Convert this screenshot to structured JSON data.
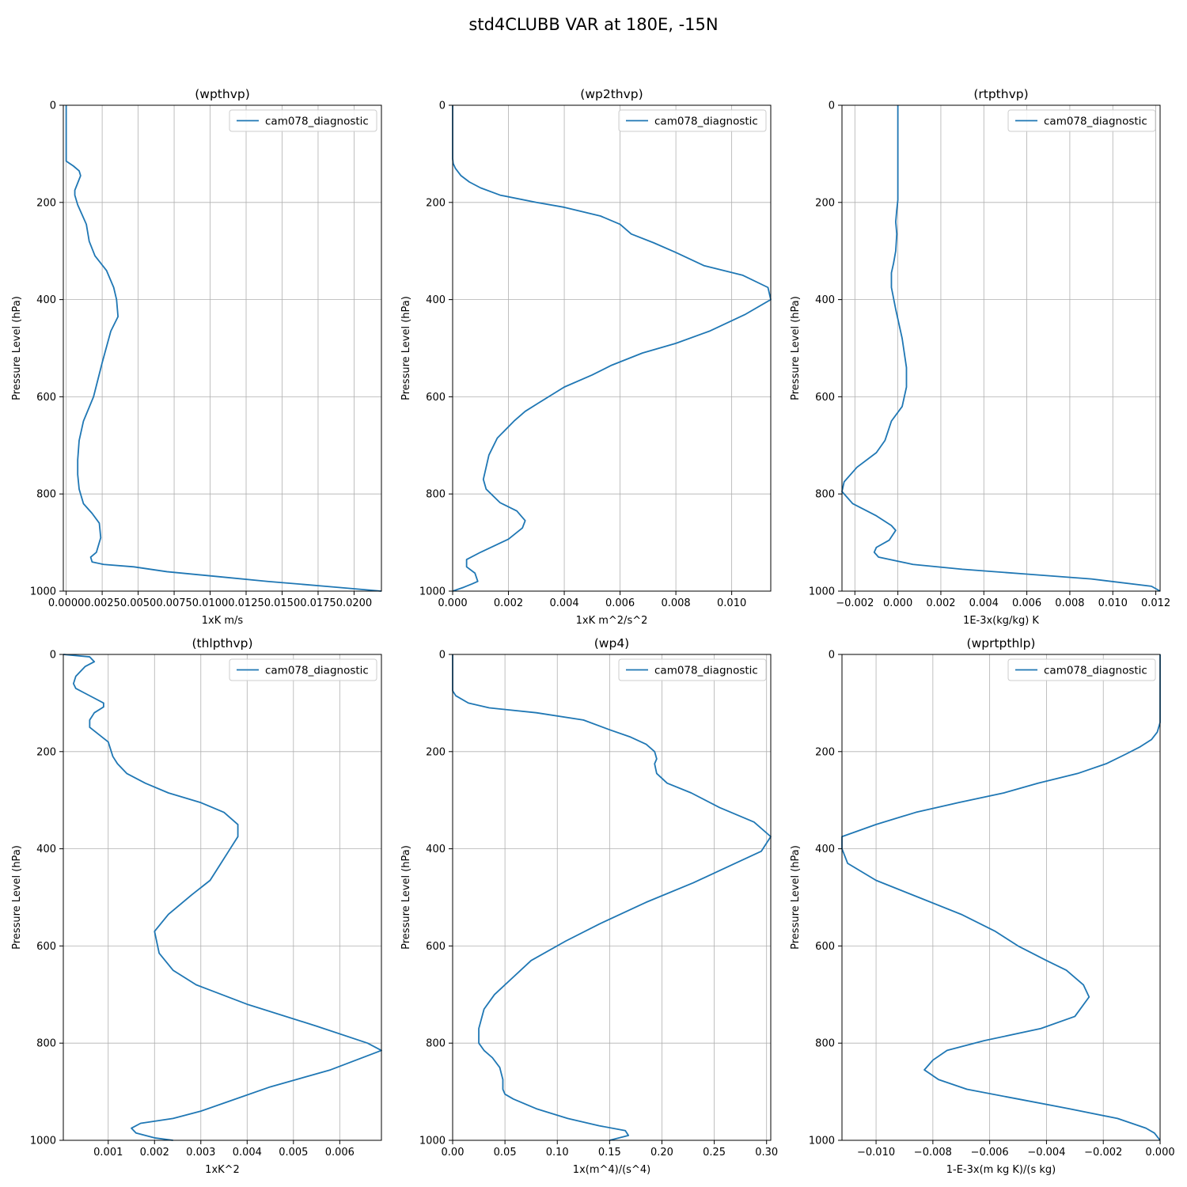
{
  "figure": {
    "title": "std4CLUBB VAR at 180E, -15N"
  },
  "chart_data": [
    {
      "type": "line",
      "title": "(wpthvp)",
      "xlabel": "1xK m/s",
      "ylabel": "Pressure Level (hPa)",
      "xlim": [
        -0.0002,
        0.0219
      ],
      "ylim": [
        1000,
        0
      ],
      "xticks": [
        0,
        0.0025,
        0.005,
        0.0075,
        0.01,
        0.0125,
        0.015,
        0.0175,
        0.02
      ],
      "xtick_labels": [
        "0.0000",
        "0.0025",
        "0.0050",
        "0.0075",
        "0.0100",
        "0.0125",
        "0.0150",
        "0.0175",
        "0.0200"
      ],
      "yticks": [
        0,
        200,
        400,
        600,
        800,
        1000
      ],
      "ytick_labels": [
        "0",
        "200",
        "400",
        "600",
        "800",
        "1000"
      ],
      "grid": true,
      "legend": "upper right",
      "series": [
        {
          "name": "cam078_diagnostic",
          "color": "#1f77b4",
          "x": [
            0.0,
            0.0,
            0.0,
            0.0,
            0.0,
            0.0,
            0.0,
            0.0,
            0.0,
            0.0,
            0.0005,
            0.0009,
            0.001,
            0.0008,
            0.0006,
            0.0006,
            0.0008,
            0.0011,
            0.0014,
            0.0016,
            0.002,
            0.0028,
            0.0033,
            0.0035,
            0.0036,
            0.0031,
            0.0025,
            0.0019,
            0.0012,
            0.0009,
            0.0008,
            0.0008,
            0.0009,
            0.0012,
            0.0018,
            0.0023,
            0.0024,
            0.0021,
            0.0017,
            0.0018,
            0.0026,
            0.0047,
            0.007,
            0.0105,
            0.014,
            0.018,
            0.0219
          ],
          "y": [
            0,
            15,
            30,
            45,
            60,
            75,
            90,
            100,
            108,
            115,
            125,
            135,
            145,
            160,
            175,
            185,
            205,
            225,
            245,
            280,
            310,
            340,
            375,
            400,
            435,
            465,
            530,
            600,
            650,
            690,
            730,
            760,
            790,
            820,
            840,
            860,
            890,
            920,
            930,
            940,
            945,
            950,
            960,
            970,
            980,
            990,
            1000
          ]
        }
      ]
    },
    {
      "type": "line",
      "title": "(wp2thvp)",
      "xlabel": "1xK m^2/s^2",
      "ylabel": "Pressure Level (hPa)",
      "xlim": [
        0,
        0.0114
      ],
      "ylim": [
        1000,
        0
      ],
      "xticks": [
        0,
        0.002,
        0.004,
        0.006,
        0.008,
        0.01
      ],
      "xtick_labels": [
        "0.000",
        "0.002",
        "0.004",
        "0.006",
        "0.008",
        "0.010"
      ],
      "yticks": [
        0,
        200,
        400,
        600,
        800,
        1000
      ],
      "ytick_labels": [
        "0",
        "200",
        "400",
        "600",
        "800",
        "1000"
      ],
      "grid": true,
      "legend": "upper right",
      "series": [
        {
          "name": "cam078_diagnostic",
          "color": "#1f77b4",
          "x": [
            0.0,
            0.0,
            0.0,
            0.0,
            2e-05,
            0.0001,
            0.0003,
            0.0006,
            0.001,
            0.0017,
            0.003,
            0.004,
            0.0053,
            0.006,
            0.0064,
            0.0072,
            0.008,
            0.009,
            0.0104,
            0.0113,
            0.0114,
            0.0105,
            0.0092,
            0.008,
            0.0068,
            0.0057,
            0.005,
            0.004,
            0.0031,
            0.0026,
            0.0022,
            0.0016,
            0.0013,
            0.0011,
            0.0012,
            0.0017,
            0.0023,
            0.0026,
            0.0025,
            0.002,
            0.001,
            0.0005,
            0.0005,
            0.0008,
            0.0009,
            0.0007,
            0.0004,
            0.0
          ],
          "y": [
            0,
            50,
            90,
            110,
            120,
            130,
            145,
            158,
            170,
            185,
            200,
            210,
            228,
            245,
            265,
            283,
            303,
            330,
            350,
            375,
            400,
            430,
            465,
            490,
            510,
            535,
            555,
            580,
            612,
            630,
            650,
            685,
            720,
            770,
            790,
            818,
            835,
            855,
            870,
            893,
            920,
            935,
            950,
            963,
            980,
            985,
            992,
            1000
          ]
        }
      ]
    },
    {
      "type": "line",
      "title": "(rtpthvp)",
      "xlabel": "1E-3x(kg/kg) K",
      "ylabel": "Pressure Level (hPa)",
      "xlim": [
        -0.0026,
        0.0122
      ],
      "ylim": [
        1000,
        0
      ],
      "xticks": [
        -0.002,
        0,
        0.002,
        0.004,
        0.006,
        0.008,
        0.01,
        0.012
      ],
      "xtick_labels": [
        "−0.002",
        "0.000",
        "0.002",
        "0.004",
        "0.006",
        "0.008",
        "0.010",
        "0.012"
      ],
      "yticks": [
        0,
        200,
        400,
        600,
        800,
        1000
      ],
      "ytick_labels": [
        "0",
        "200",
        "400",
        "600",
        "800",
        "1000"
      ],
      "grid": true,
      "legend": "upper right",
      "series": [
        {
          "name": "cam078_diagnostic",
          "color": "#1f77b4",
          "x": [
            0.0,
            0.0,
            0.0,
            -5e-05,
            -0.0001,
            -5e-05,
            -0.0001,
            -0.0002,
            -0.0003,
            -0.0003,
            -0.0001,
            0.0002,
            0.0004,
            0.0004,
            0.0004,
            0.0002,
            -0.0003,
            -0.0006,
            -0.001,
            -0.0019,
            -0.0025,
            -0.0026,
            -0.0021,
            -0.001,
            -0.0003,
            -0.0001,
            -0.0004,
            -0.001,
            -0.0011,
            -0.0009,
            0.0007,
            0.003,
            0.006,
            0.009,
            0.0118,
            0.0122
          ],
          "y": [
            0,
            100,
            195,
            215,
            240,
            265,
            300,
            325,
            345,
            375,
            420,
            480,
            540,
            575,
            580,
            620,
            650,
            690,
            715,
            745,
            775,
            795,
            820,
            845,
            865,
            875,
            895,
            910,
            920,
            930,
            945,
            955,
            965,
            975,
            990,
            1000
          ]
        }
      ]
    },
    {
      "type": "line",
      "title": "(thlpthvp)",
      "xlabel": "1xK^2",
      "ylabel": "Pressure Level (hPa)",
      "xlim": [
        3e-05,
        0.0069
      ],
      "ylim": [
        1000,
        0
      ],
      "xticks": [
        0.001,
        0.002,
        0.003,
        0.004,
        0.005,
        0.006
      ],
      "xtick_labels": [
        "0.001",
        "0.002",
        "0.003",
        "0.004",
        "0.005",
        "0.006"
      ],
      "yticks": [
        0,
        200,
        400,
        600,
        800,
        1000
      ],
      "ytick_labels": [
        "0",
        "200",
        "400",
        "600",
        "800",
        "1000"
      ],
      "grid": true,
      "legend": "upper right",
      "series": [
        {
          "name": "cam078_diagnostic",
          "color": "#1f77b4",
          "x": [
            3e-05,
            0.0006,
            0.0007,
            0.0005,
            0.0003,
            0.00025,
            0.0003,
            0.0005,
            0.0007,
            0.0009,
            0.0009,
            0.0007,
            0.0006,
            0.0006,
            0.0008,
            0.001,
            0.0011,
            0.0012,
            0.0014,
            0.0018,
            0.0023,
            0.003,
            0.0035,
            0.0038,
            0.0038,
            0.0036,
            0.0034,
            0.0032,
            0.0028,
            0.0023,
            0.002,
            0.0021,
            0.0024,
            0.0029,
            0.004,
            0.0055,
            0.0066,
            0.0069,
            0.0058,
            0.0045,
            0.0036,
            0.003,
            0.0024,
            0.0017,
            0.0015,
            0.0016,
            0.002,
            0.0024
          ],
          "y": [
            0,
            5,
            15,
            25,
            45,
            60,
            70,
            80,
            90,
            100,
            108,
            120,
            135,
            150,
            165,
            180,
            210,
            225,
            245,
            265,
            285,
            305,
            325,
            350,
            375,
            405,
            435,
            465,
            495,
            535,
            570,
            615,
            650,
            680,
            720,
            765,
            800,
            815,
            855,
            890,
            920,
            940,
            955,
            965,
            975,
            985,
            995,
            1000
          ]
        }
      ]
    },
    {
      "type": "line",
      "title": "(wp4)",
      "xlabel": "1x(m^4)/(s^4)",
      "ylabel": "Pressure Level (hPa)",
      "xlim": [
        0,
        0.304
      ],
      "ylim": [
        1000,
        0
      ],
      "xticks": [
        0,
        0.05,
        0.1,
        0.15,
        0.2,
        0.25,
        0.3
      ],
      "xtick_labels": [
        "0.00",
        "0.05",
        "0.10",
        "0.15",
        "0.20",
        "0.25",
        "0.30"
      ],
      "yticks": [
        0,
        200,
        400,
        600,
        800,
        1000
      ],
      "ytick_labels": [
        "0",
        "200",
        "400",
        "600",
        "800",
        "1000"
      ],
      "grid": true,
      "legend": "upper right",
      "series": [
        {
          "name": "cam078_diagnostic",
          "color": "#1f77b4",
          "x": [
            0.0,
            0.0,
            0.0,
            0.003,
            0.015,
            0.035,
            0.08,
            0.125,
            0.15,
            0.17,
            0.185,
            0.193,
            0.195,
            0.193,
            0.195,
            0.205,
            0.228,
            0.255,
            0.288,
            0.304,
            0.295,
            0.265,
            0.23,
            0.185,
            0.14,
            0.108,
            0.075,
            0.055,
            0.04,
            0.03,
            0.025,
            0.025,
            0.03,
            0.038,
            0.045,
            0.048,
            0.048,
            0.05,
            0.058,
            0.08,
            0.11,
            0.14,
            0.165,
            0.168,
            0.15
          ],
          "y": [
            0,
            50,
            75,
            85,
            100,
            110,
            120,
            135,
            155,
            170,
            185,
            200,
            215,
            225,
            245,
            265,
            285,
            315,
            345,
            375,
            405,
            435,
            470,
            510,
            555,
            590,
            630,
            670,
            700,
            730,
            770,
            800,
            815,
            830,
            850,
            875,
            895,
            905,
            915,
            935,
            955,
            970,
            980,
            990,
            1000
          ]
        }
      ]
    },
    {
      "type": "line",
      "title": "(wprtpthlp)",
      "xlabel": "1-E-3x(m kg K)/(s kg)",
      "ylabel": "Pressure Level (hPa)",
      "xlim": [
        -0.0112,
        0
      ],
      "ylim": [
        1000,
        0
      ],
      "xticks": [
        -0.01,
        -0.008,
        -0.006,
        -0.004,
        -0.002,
        0
      ],
      "xtick_labels": [
        "−0.010",
        "−0.008",
        "−0.006",
        "−0.004",
        "−0.002",
        "0.000"
      ],
      "yticks": [
        0,
        200,
        400,
        600,
        800,
        1000
      ],
      "ytick_labels": [
        "0",
        "200",
        "400",
        "600",
        "800",
        "1000"
      ],
      "grid": true,
      "legend": "upper right",
      "series": [
        {
          "name": "cam078_diagnostic",
          "color": "#1f77b4",
          "x": [
            0.0,
            0.0,
            -0.0001,
            -0.0003,
            -0.0007,
            -0.0012,
            -0.0019,
            -0.0029,
            -0.0043,
            -0.0055,
            -0.0071,
            -0.0086,
            -0.01,
            -0.0112,
            -0.0112,
            -0.011,
            -0.01,
            -0.0085,
            -0.007,
            -0.0058,
            -0.005,
            -0.004,
            -0.0033,
            -0.0027,
            -0.0025,
            -0.003,
            -0.0042,
            -0.0062,
            -0.0075,
            -0.008,
            -0.0083,
            -0.0078,
            -0.0068,
            -0.005,
            -0.0032,
            -0.0015,
            -0.0005,
            -0.0002,
            0.0
          ],
          "y": [
            0,
            140,
            160,
            175,
            190,
            205,
            225,
            245,
            265,
            285,
            305,
            325,
            350,
            375,
            400,
            430,
            465,
            500,
            535,
            570,
            600,
            630,
            650,
            680,
            705,
            745,
            770,
            795,
            815,
            835,
            855,
            875,
            895,
            915,
            935,
            955,
            975,
            985,
            1000
          ]
        }
      ]
    }
  ]
}
